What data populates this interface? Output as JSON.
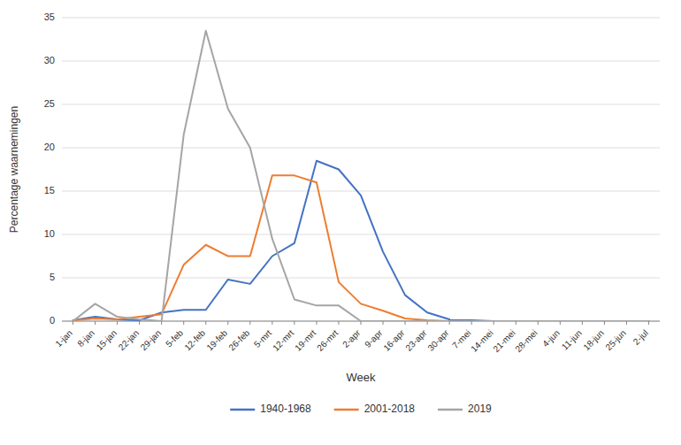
{
  "chart_data": {
    "type": "line",
    "xlabel": "Week",
    "ylabel": "Percentage waarnemingen",
    "categories": [
      "1-jan",
      "8-jan",
      "15-jan",
      "22-jan",
      "29-jan",
      "5-feb",
      "12-feb",
      "19-feb",
      "26-feb",
      "5-mrt",
      "12-mrt",
      "19-mrt",
      "26-mrt",
      "2-apr",
      "9-apr",
      "16-apr",
      "23-apr",
      "30-apr",
      "7-mei",
      "14-mei",
      "21-mei",
      "28-mei",
      "4-jun",
      "11-jun",
      "18-jun",
      "25-jun",
      "2-jul"
    ],
    "series": [
      {
        "name": "1940-1968",
        "color": "#4472c4",
        "values": [
          0.1,
          0.5,
          0.2,
          0.1,
          1.0,
          1.3,
          1.3,
          4.8,
          4.3,
          7.5,
          9.0,
          18.5,
          17.5,
          14.5,
          8.0,
          3.0,
          1.0,
          0.2,
          0.1,
          0.0,
          0.0,
          0.0,
          0.0,
          0.0,
          0.0,
          0.0,
          0.0
        ]
      },
      {
        "name": "2001-2018",
        "color": "#ed7d31",
        "values": [
          0.1,
          0.3,
          0.2,
          0.5,
          0.8,
          6.5,
          8.8,
          7.5,
          7.5,
          16.8,
          16.8,
          16.0,
          4.5,
          2.0,
          1.2,
          0.3,
          0.1,
          0.0,
          0.0,
          0.0,
          0.0,
          0.0,
          0.0,
          0.0,
          0.0,
          0.0,
          0.0
        ]
      },
      {
        "name": "2019",
        "color": "#a5a5a5",
        "values": [
          0.0,
          2.0,
          0.5,
          0.2,
          0.0,
          21.5,
          33.5,
          24.5,
          20.0,
          9.5,
          2.5,
          1.8,
          1.8,
          0.0,
          0.0,
          0.0,
          0.0,
          0.0,
          0.0,
          0.0,
          0.0,
          0.0,
          0.0,
          0.0,
          0.0,
          0.0,
          0.0
        ]
      }
    ],
    "ylim": [
      0,
      35
    ],
    "yticks": [
      0,
      5,
      10,
      15,
      20,
      25,
      30,
      35
    ],
    "grid": true,
    "legend": "bottom"
  }
}
